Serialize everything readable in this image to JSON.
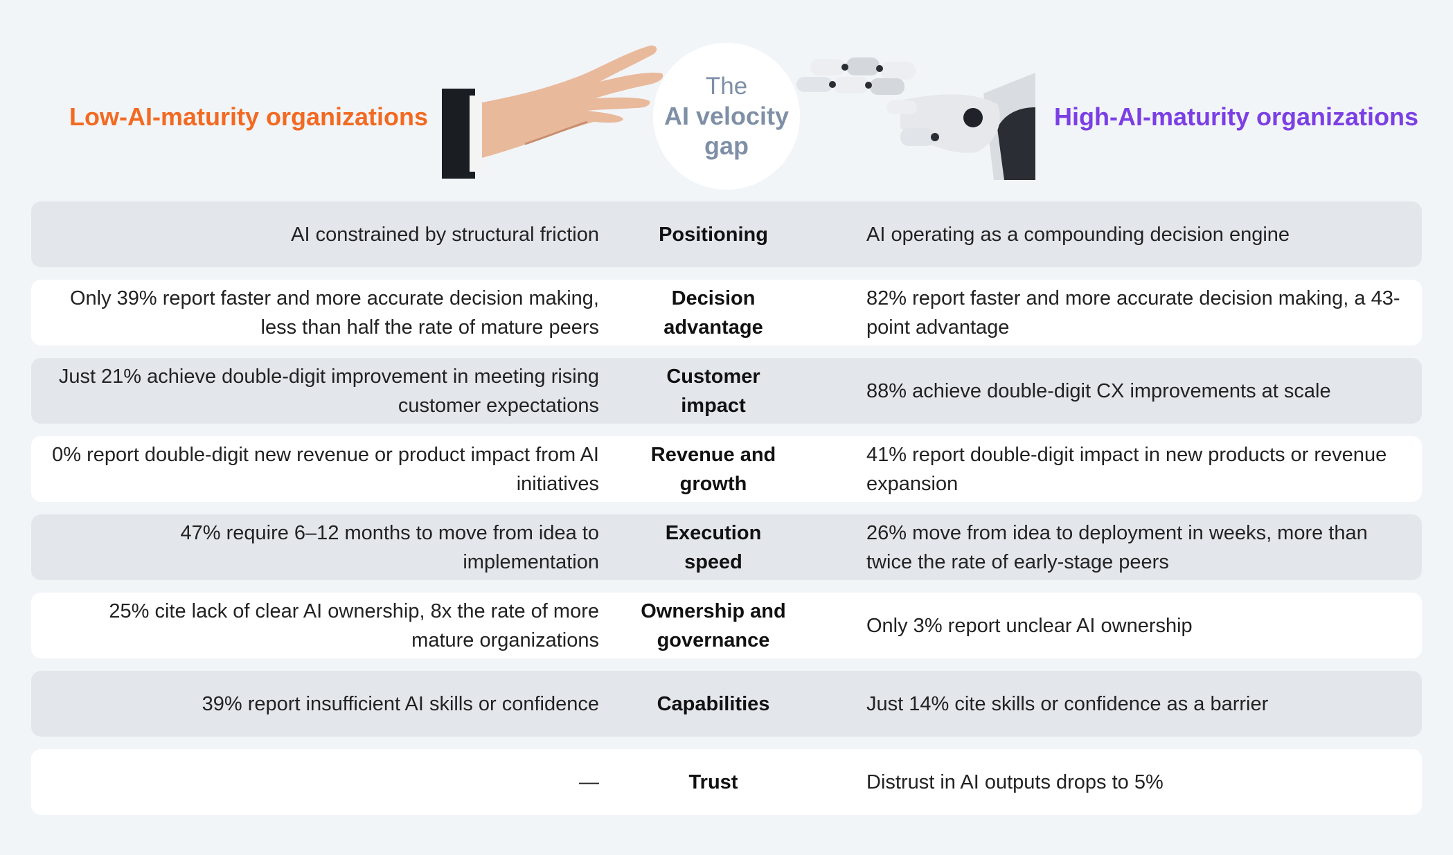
{
  "header": {
    "left_title": "Low-AI-maturity organizations",
    "right_title": "High-AI-maturity organizations",
    "center": {
      "line1": "The",
      "line2": "AI velocity",
      "line3": "gap"
    },
    "colors": {
      "low": "#f26a21",
      "high": "#7b3fe4",
      "center": "#7f8fa6"
    }
  },
  "rows": [
    {
      "category": "Positioning",
      "low": "AI constrained by structural friction",
      "high": "AI operating as a compounding decision engine"
    },
    {
      "category": "Decision advantage",
      "low": "Only 39% report faster and more accurate decision making, less than half the rate of mature peers",
      "high": "82% report faster and more accurate decision making, a 43-point advantage"
    },
    {
      "category": "Customer impact",
      "low": "Just 21% achieve double-digit improvement in meeting rising customer expectations",
      "high": "88% achieve double-digit CX improvements at scale"
    },
    {
      "category": "Revenue and growth",
      "low": "0% report double-digit new revenue or product impact from AI initiatives",
      "high": "41% report double-digit impact in new products or revenue expansion"
    },
    {
      "category": "Execution speed",
      "low": "47% require 6–12 months to move from idea to implementation",
      "high": "26% move from idea to deployment in weeks, more than twice the rate of early-stage peers"
    },
    {
      "category": "Ownership and governance",
      "low": "25% cite lack of clear AI ownership, 8x the rate of more mature organizations",
      "high": "Only 3% report unclear AI ownership"
    },
    {
      "category": "Capabilities",
      "low": "39% report insufficient AI skills or confidence",
      "high": "Just 14% cite skills or confidence as a barrier"
    },
    {
      "category": "Trust",
      "low": "—",
      "high": "Distrust in AI outputs drops to 5%"
    }
  ]
}
